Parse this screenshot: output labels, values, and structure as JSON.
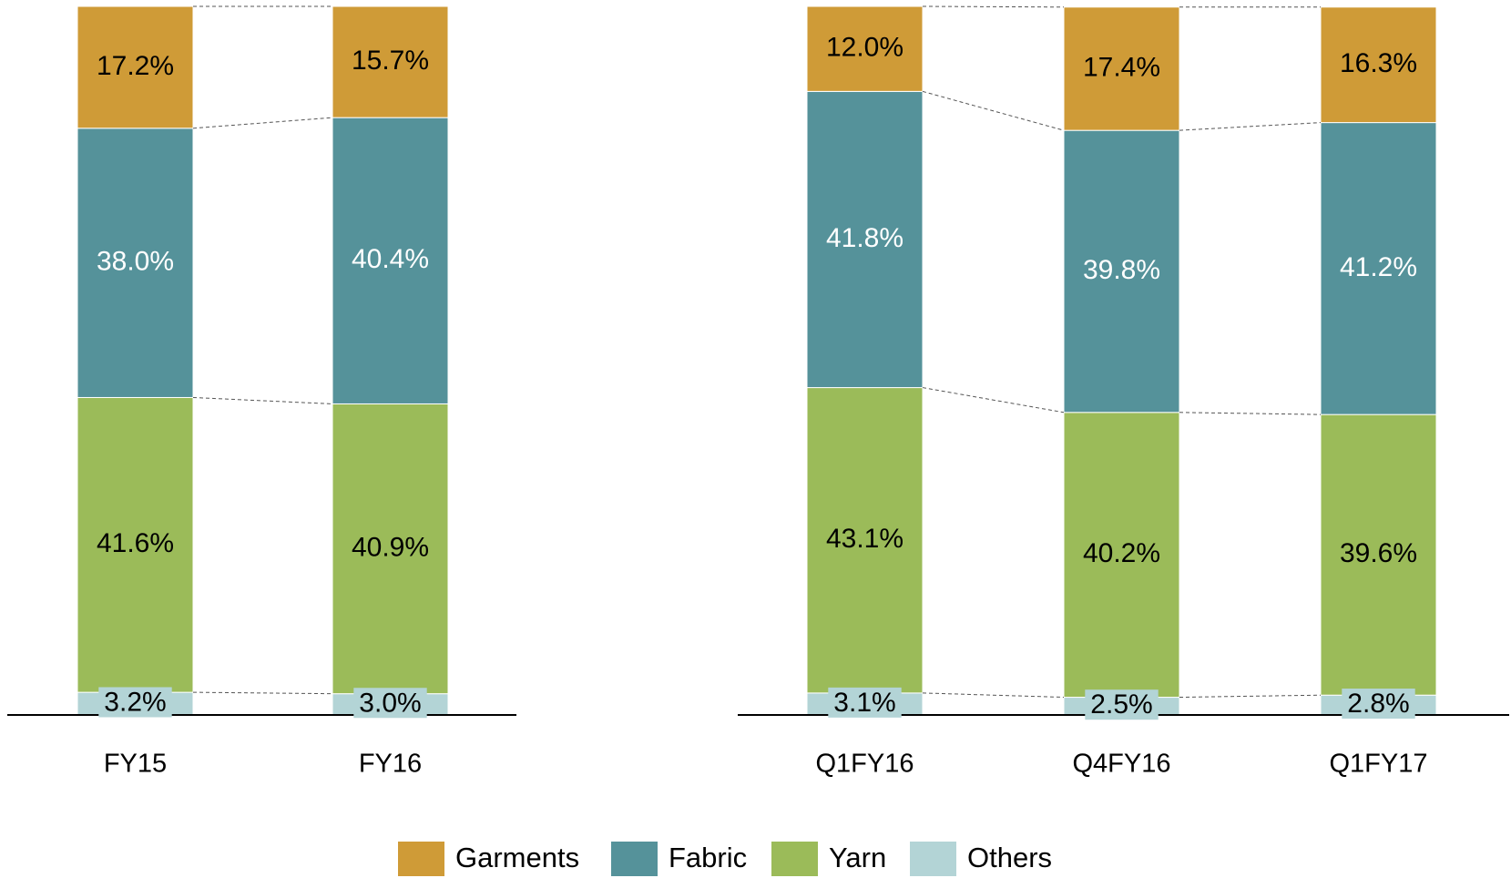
{
  "chart_data": [
    {
      "type": "stacked_bar",
      "categories": [
        "FY15",
        "FY16"
      ],
      "ylim": [
        0,
        100
      ],
      "series": [
        {
          "name": "Others",
          "color": "#b3d4d6",
          "label_color": "#000000",
          "values": [
            3.2,
            3.0
          ],
          "value_labels": [
            "3.2%",
            "3.0%"
          ]
        },
        {
          "name": "Yarn",
          "color": "#9bbb59",
          "label_color": "#000000",
          "values": [
            41.6,
            40.9
          ],
          "value_labels": [
            "41.6%",
            "40.9%"
          ]
        },
        {
          "name": "Fabric",
          "color": "#55929a",
          "label_color": "#ffffff",
          "values": [
            38.0,
            40.4
          ],
          "value_labels": [
            "38.0%",
            "40.4%"
          ]
        },
        {
          "name": "Garments",
          "color": "#cf9b37",
          "label_color": "#000000",
          "values": [
            17.2,
            15.7
          ],
          "value_labels": [
            "17.2%",
            "15.7%"
          ]
        }
      ]
    },
    {
      "type": "stacked_bar",
      "categories": [
        "Q1FY16",
        "Q4FY16",
        "Q1FY17"
      ],
      "ylim": [
        0,
        100
      ],
      "series": [
        {
          "name": "Others",
          "color": "#b3d4d6",
          "label_color": "#000000",
          "values": [
            3.1,
            2.5,
            2.8
          ],
          "value_labels": [
            "3.1%",
            "2.5%",
            "2.8%"
          ]
        },
        {
          "name": "Yarn",
          "color": "#9bbb59",
          "label_color": "#000000",
          "values": [
            43.1,
            40.2,
            39.6
          ],
          "value_labels": [
            "43.1%",
            "40.2%",
            "39.6%"
          ]
        },
        {
          "name": "Fabric",
          "color": "#55929a",
          "label_color": "#ffffff",
          "values": [
            41.8,
            39.8,
            41.2
          ],
          "value_labels": [
            "41.8%",
            "39.8%",
            "41.2%"
          ]
        },
        {
          "name": "Garments",
          "color": "#cf9b37",
          "label_color": "#000000",
          "values": [
            12.0,
            17.4,
            16.3
          ],
          "value_labels": [
            "12.0%",
            "17.4%",
            "16.3%"
          ]
        }
      ]
    }
  ]
}
